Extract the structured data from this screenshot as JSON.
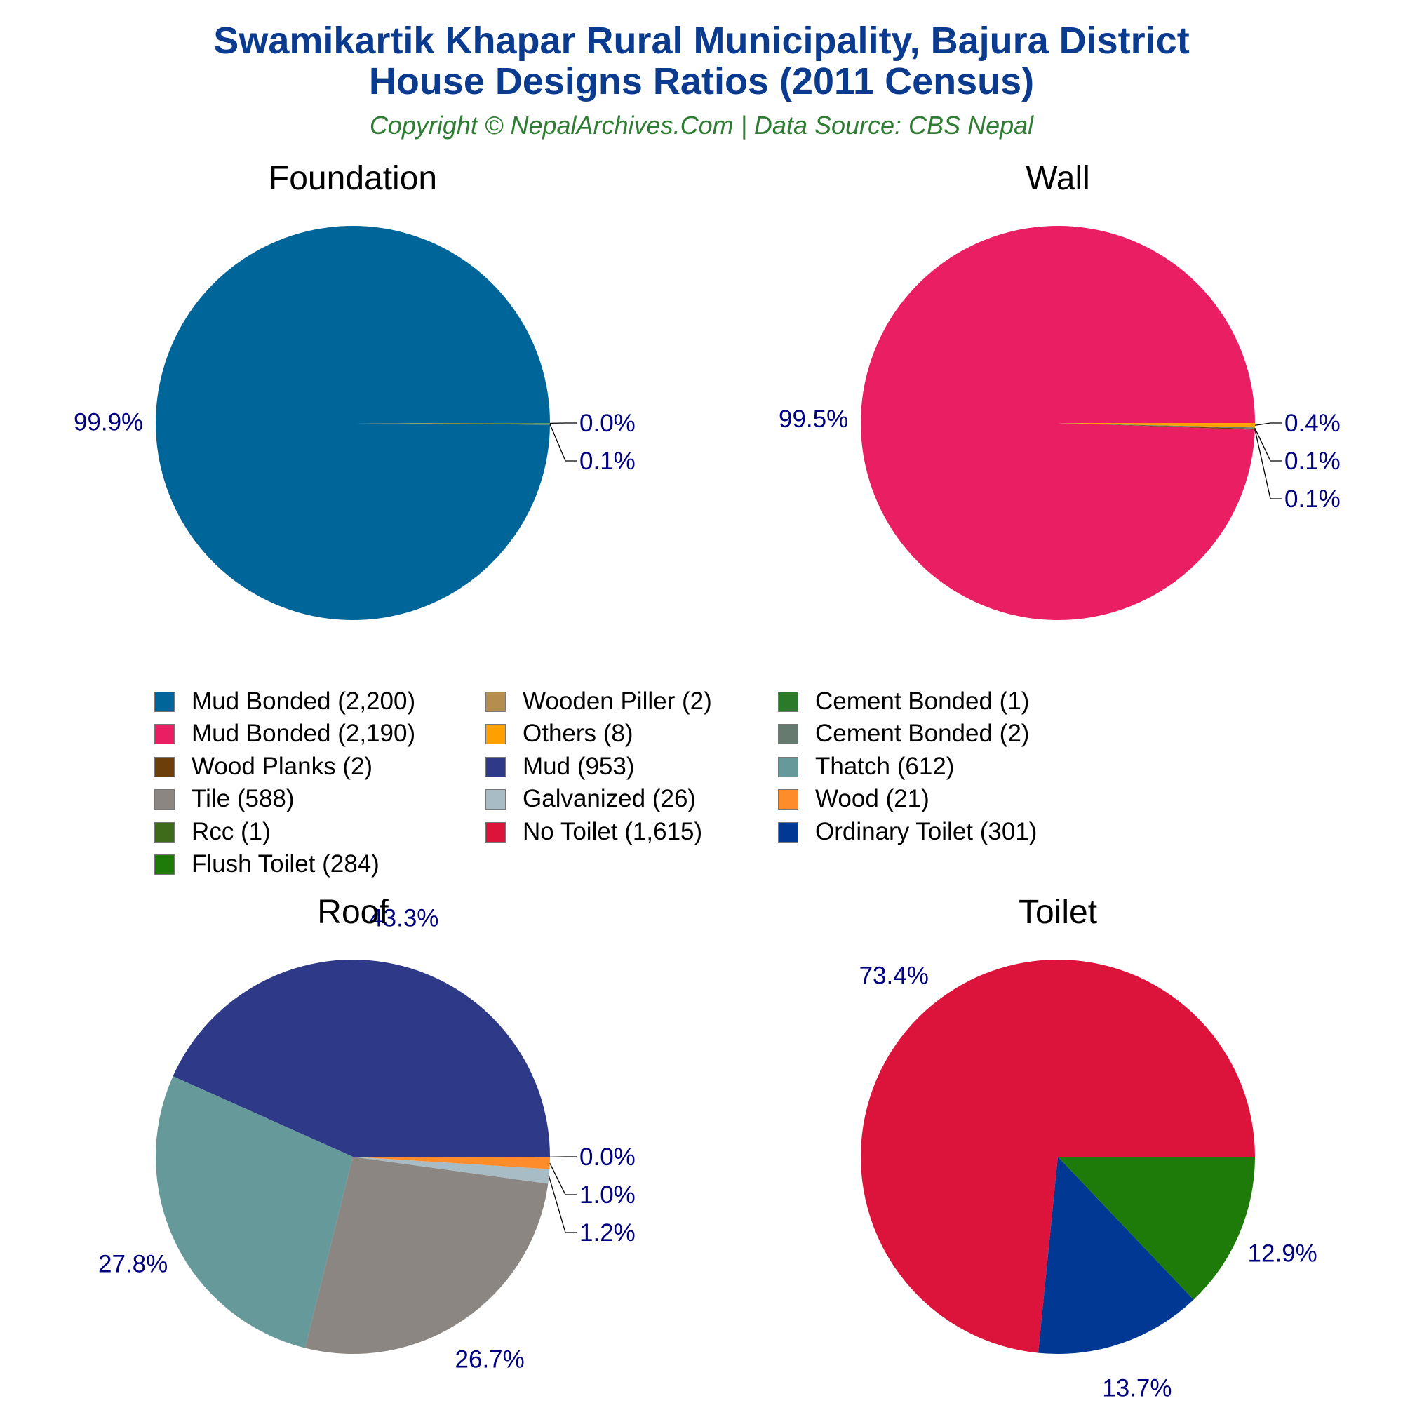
{
  "title_line1": "Swamikartik Khapar Rural Municipality, Bajura District",
  "title_line2": "House Designs Ratios (2011 Census)",
  "subtitle": "Copyright © NepalArchives.Com | Data Source: CBS Nepal",
  "label_color": "#000080",
  "chart_data": [
    {
      "type": "pie",
      "title": "Foundation",
      "start": "right",
      "direction": "counterclockwise",
      "slices": [
        {
          "name": "Mud Bonded",
          "value": 2200,
          "label": "99.9%",
          "color": "#006699"
        },
        {
          "name": "Wooden Piller",
          "value": 2,
          "label": "0.1%",
          "color": "#b58d4e"
        },
        {
          "name": "Cement Bonded",
          "value": 1,
          "label": "0.0%",
          "color": "#2a7a2a"
        }
      ]
    },
    {
      "type": "pie",
      "title": "Wall",
      "start": "right",
      "direction": "counterclockwise",
      "slices": [
        {
          "name": "Mud Bonded",
          "value": 2190,
          "label": "99.5%",
          "color": "#e91e63"
        },
        {
          "name": "Wood Planks",
          "value": 2,
          "label": "0.1%",
          "color": "#6b3e0a"
        },
        {
          "name": "Cement Bonded",
          "value": 2,
          "label": "0.1%",
          "color": "#667a70"
        },
        {
          "name": "Others",
          "value": 8,
          "label": "0.4%",
          "color": "#ff9f00"
        }
      ]
    },
    {
      "type": "pie",
      "title": "Roof",
      "start": "right",
      "direction": "counterclockwise",
      "slices": [
        {
          "name": "Mud",
          "value": 953,
          "label": "43.3%",
          "color": "#2e3a87"
        },
        {
          "name": "Thatch",
          "value": 612,
          "label": "27.8%",
          "color": "#669999"
        },
        {
          "name": "Tile",
          "value": 588,
          "label": "26.7%",
          "color": "#8b8682"
        },
        {
          "name": "Galvanized",
          "value": 26,
          "label": "1.2%",
          "color": "#a8bcc5"
        },
        {
          "name": "Wood",
          "value": 21,
          "label": "1.0%",
          "color": "#ff8c2a"
        },
        {
          "name": "Rcc",
          "value": 1,
          "label": "0.0%",
          "color": "#3d6b1a"
        }
      ]
    },
    {
      "type": "pie",
      "title": "Toilet",
      "start": "right",
      "direction": "counterclockwise",
      "slices": [
        {
          "name": "No Toilet",
          "value": 1615,
          "label": "73.4%",
          "color": "#dc143c"
        },
        {
          "name": "Ordinary Toilet",
          "value": 301,
          "label": "13.7%",
          "color": "#003893"
        },
        {
          "name": "Flush Toilet",
          "value": 284,
          "label": "12.9%",
          "color": "#1e7b0a"
        }
      ]
    }
  ],
  "legend": [
    {
      "text": "Mud Bonded (2,200)",
      "color": "#006699"
    },
    {
      "text": "Mud Bonded (2,190)",
      "color": "#e91e63"
    },
    {
      "text": "Wood Planks (2)",
      "color": "#6b3e0a"
    },
    {
      "text": "Tile (588)",
      "color": "#8b8682"
    },
    {
      "text": "Rcc (1)",
      "color": "#3d6b1a"
    },
    {
      "text": "Flush Toilet (284)",
      "color": "#1e7b0a"
    },
    {
      "text": "Wooden Piller (2)",
      "color": "#b58d4e"
    },
    {
      "text": "Others (8)",
      "color": "#ff9f00"
    },
    {
      "text": "Mud (953)",
      "color": "#2e3a87"
    },
    {
      "text": "Galvanized (26)",
      "color": "#a8bcc5"
    },
    {
      "text": "No Toilet (1,615)",
      "color": "#dc143c"
    },
    {
      "text": "Cement Bonded (1)",
      "color": "#2a7a2a"
    },
    {
      "text": "Cement Bonded (2)",
      "color": "#667a70"
    },
    {
      "text": "Thatch (612)",
      "color": "#669999"
    },
    {
      "text": "Wood (21)",
      "color": "#ff8c2a"
    },
    {
      "text": "Ordinary Toilet (301)",
      "color": "#003893"
    }
  ]
}
